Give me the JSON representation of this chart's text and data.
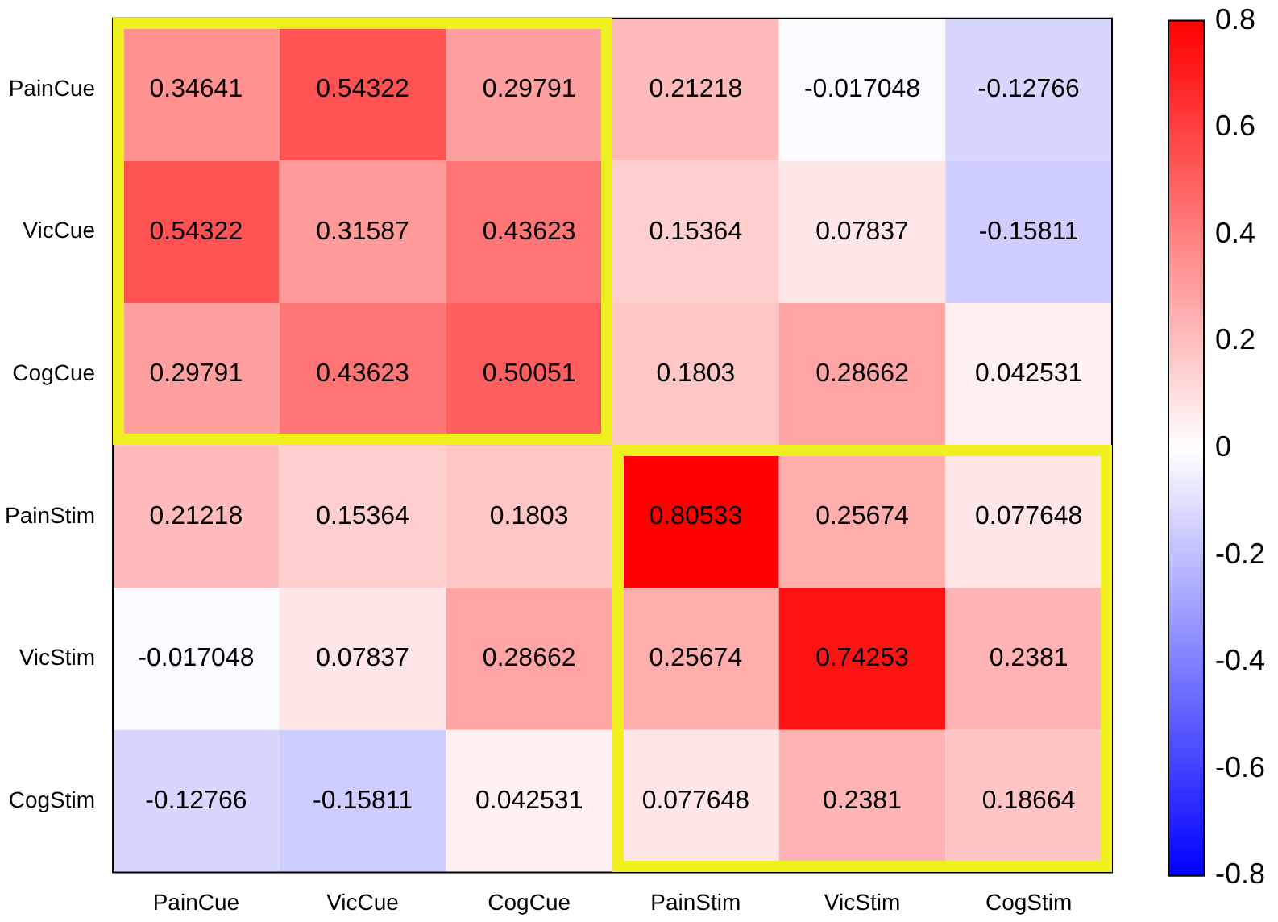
{
  "chart_data": {
    "type": "heatmap",
    "categories": [
      "PainCue",
      "VicCue",
      "CogCue",
      "PainStim",
      "VicStim",
      "CogStim"
    ],
    "y_categories": [
      "PainCue",
      "VicCue",
      "CogCue",
      "PainStim",
      "VicStim",
      "CogStim"
    ],
    "cells": [
      [
        0.34641,
        0.54322,
        0.29791,
        0.21218,
        -0.017048,
        -0.12766
      ],
      [
        0.54322,
        0.31587,
        0.43623,
        0.15364,
        0.07837,
        -0.15811
      ],
      [
        0.29791,
        0.43623,
        0.50051,
        0.1803,
        0.28662,
        0.042531
      ],
      [
        0.21218,
        0.15364,
        0.1803,
        0.80533,
        0.25674,
        0.077648
      ],
      [
        -0.017048,
        0.07837,
        0.28662,
        0.25674,
        0.74253,
        0.2381
      ],
      [
        -0.12766,
        -0.15811,
        0.042531,
        0.077648,
        0.2381,
        0.18664
      ]
    ],
    "clim": [
      -0.8,
      0.8
    ],
    "cticks": [
      -0.8,
      -0.6,
      -0.4,
      -0.2,
      0,
      0.2,
      0.4,
      0.6,
      0.8
    ],
    "data_labels": true
  }
}
